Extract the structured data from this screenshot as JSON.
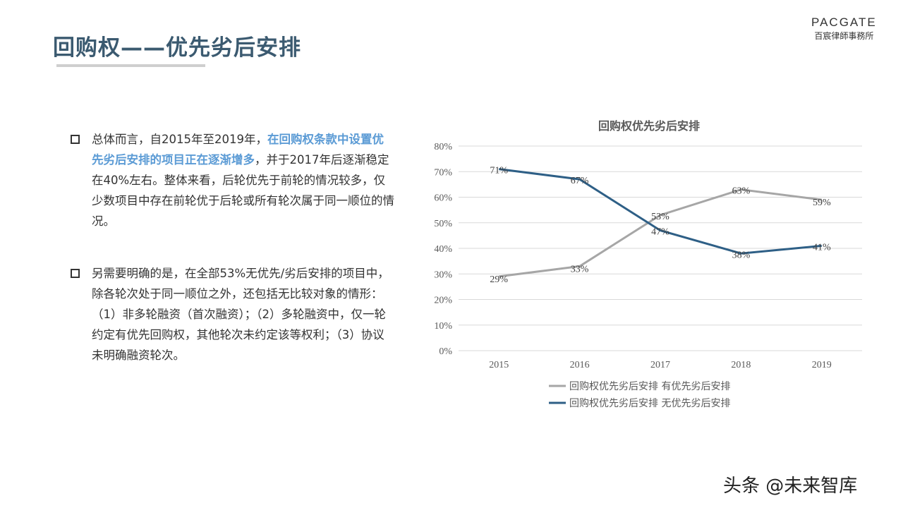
{
  "header": {
    "title": "回购权——优先劣后安排",
    "logo_en": "PACGATE",
    "logo_cn": "百宸律師事務所"
  },
  "body": {
    "p1": {
      "pre": "总体而言，自2015年至2019年，",
      "highlight": "在回购权条款中设置优先劣后安排的项目正在逐渐增多",
      "post": "，并于2017年后逐渐稳定在40%左右。整体来看，后轮优先于前轮的情况较多，仅少数项目中存在前轮优于后轮或所有轮次属于同一顺位的情况。"
    },
    "p2": {
      "text": "另需要明确的是，在全部53%无优先/劣后安排的项目中，除各轮次处于同一顺位之外，还包括无比较对象的情形：（1）非多轮融资（首次融资）；（2）多轮融资中，仅一轮约定有优先回购权，其他轮次未约定该等权利；（3）协议未明确融资轮次。"
    }
  },
  "watermark": "头条 @未来智库",
  "chart_data": {
    "type": "line",
    "title": "回购权优先劣后安排",
    "categories": [
      "2015",
      "2016",
      "2017",
      "2018",
      "2019"
    ],
    "y_ticks": [
      "0%",
      "10%",
      "20%",
      "30%",
      "40%",
      "50%",
      "60%",
      "70%",
      "80%"
    ],
    "ylim": [
      0,
      80
    ],
    "grid": true,
    "legend_position": "bottom",
    "series": [
      {
        "name": "回购权优先劣后安排 有优先劣后安排",
        "values": [
          29,
          33,
          53,
          63,
          59
        ],
        "labels": [
          "29%",
          "33%",
          "53%",
          "63%",
          "59%"
        ],
        "color": "#a6a6a6"
      },
      {
        "name": "回购权优先劣后安排 无优先劣后安排",
        "values": [
          71,
          67,
          47,
          38,
          41
        ],
        "labels": [
          "71%",
          "67%",
          "47%",
          "38%",
          "41%"
        ],
        "color": "#2e5f86"
      }
    ]
  }
}
